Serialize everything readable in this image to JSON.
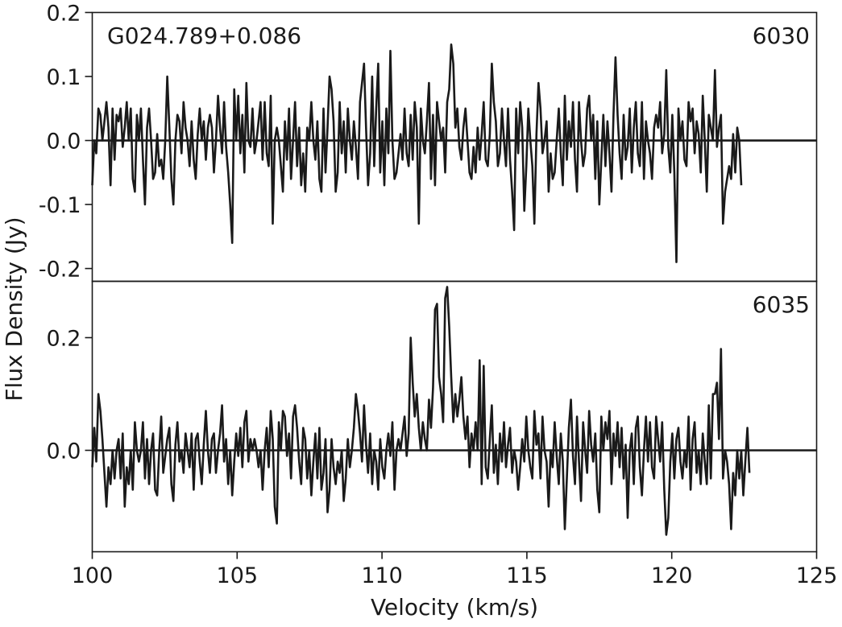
{
  "chart_data": {
    "type": "line",
    "xlabel": "Velocity (km/s)",
    "ylabel": "Flux Density (Jy)",
    "xlim": [
      100,
      125
    ],
    "x_ticks": [
      100,
      105,
      110,
      115,
      120,
      125
    ],
    "x_tick_labels": [
      "100",
      "105",
      "110",
      "115",
      "120",
      "125"
    ],
    "panels": [
      {
        "source_label": "G024.789+0.086",
        "label": "6030",
        "ylim": [
          -0.22,
          0.2
        ],
        "y_ticks": [
          -0.2,
          -0.1,
          0.0,
          0.1,
          0.2
        ],
        "y_tick_labels": [
          "-0.2",
          "-0.1",
          "0.0",
          "0.1",
          "0.2"
        ],
        "x_start": 100.0,
        "x_step": 0.07,
        "values": [
          -0.07,
          0.0,
          -0.02,
          0.05,
          0.04,
          0.0,
          0.03,
          0.06,
          0.02,
          -0.07,
          0.05,
          -0.03,
          0.04,
          0.03,
          0.05,
          -0.01,
          0.02,
          0.06,
          0.0,
          0.05,
          -0.06,
          -0.08,
          0.04,
          0.0,
          0.05,
          -0.03,
          -0.1,
          0.02,
          0.05,
          0.0,
          -0.06,
          -0.05,
          0.01,
          -0.04,
          -0.03,
          -0.06,
          0.0,
          0.1,
          0.02,
          -0.06,
          -0.1,
          0.0,
          0.04,
          0.03,
          -0.02,
          0.06,
          0.02,
          0.0,
          -0.04,
          0.03,
          -0.03,
          -0.06,
          0.01,
          0.05,
          0.0,
          0.03,
          -0.03,
          0.02,
          0.04,
          0.02,
          -0.05,
          0.0,
          0.07,
          0.02,
          -0.02,
          0.06,
          -0.01,
          -0.05,
          -0.1,
          -0.16,
          0.08,
          0.0,
          0.07,
          -0.02,
          0.04,
          -0.05,
          0.09,
          0.0,
          -0.01,
          0.05,
          -0.02,
          0.0,
          0.03,
          0.06,
          -0.03,
          0.06,
          -0.02,
          -0.04,
          0.07,
          -0.13,
          0.0,
          0.02,
          0.0,
          -0.04,
          -0.08,
          0.03,
          -0.03,
          0.05,
          -0.06,
          0.0,
          0.06,
          -0.04,
          0.02,
          -0.07,
          -0.02,
          -0.08,
          0.02,
          0.0,
          0.06,
          0.0,
          -0.03,
          0.03,
          -0.06,
          -0.08,
          0.05,
          -0.05,
          0.02,
          0.1,
          0.08,
          0.03,
          -0.08,
          -0.05,
          0.06,
          -0.02,
          0.03,
          -0.05,
          0.05,
          0.0,
          -0.03,
          0.03,
          -0.01,
          -0.06,
          0.06,
          0.09,
          0.12,
          0.02,
          -0.07,
          -0.02,
          0.1,
          -0.04,
          0.05,
          0.12,
          -0.05,
          0.03,
          -0.07,
          0.05,
          -0.02,
          0.14,
          0.0,
          -0.06,
          -0.05,
          -0.02,
          0.01,
          -0.03,
          0.05,
          -0.02,
          -0.04,
          0.04,
          -0.03,
          0.06,
          0.02,
          -0.13,
          0.05,
          0.0,
          -0.02,
          0.03,
          0.09,
          -0.06,
          0.04,
          -0.07,
          0.06,
          0.03,
          0.0,
          0.02,
          -0.05,
          0.06,
          0.08,
          0.15,
          0.12,
          0.02,
          0.05,
          -0.01,
          -0.03,
          0.02,
          0.05,
          0.0,
          -0.05,
          -0.06,
          -0.01,
          -0.05,
          0.02,
          -0.03,
          0.01,
          0.06,
          -0.03,
          -0.04,
          0.01,
          0.12,
          0.06,
          0.03,
          -0.04,
          -0.02,
          0.05,
          0.0,
          -0.04,
          0.05,
          -0.03,
          -0.08,
          -0.14,
          0.05,
          -0.02,
          0.06,
          0.02,
          -0.11,
          -0.04,
          0.05,
          0.0,
          -0.04,
          -0.13,
          0.01,
          0.09,
          0.05,
          -0.02,
          0.0,
          0.03,
          -0.08,
          -0.02,
          -0.06,
          -0.05,
          0.0,
          0.05,
          -0.02,
          -0.07,
          0.07,
          -0.03,
          0.03,
          -0.01,
          0.06,
          -0.03,
          -0.08,
          0.06,
          0.0,
          -0.04,
          -0.02,
          0.05,
          0.07,
          0.0,
          0.04,
          -0.06,
          0.03,
          -0.1,
          -0.03,
          0.04,
          -0.04,
          0.03,
          -0.02,
          -0.08,
          0.04,
          0.13,
          0.04,
          -0.02,
          -0.06,
          0.04,
          -0.03,
          -0.01,
          0.05,
          -0.05,
          0.02,
          0.06,
          -0.02,
          -0.04,
          0.06,
          -0.06,
          0.03,
          0.0,
          -0.02,
          -0.06,
          0.02,
          0.04,
          0.02,
          0.06,
          -0.02,
          0.01,
          0.11,
          -0.01,
          -0.05,
          0.04,
          -0.05,
          -0.19,
          0.05,
          0.0,
          0.03,
          -0.03,
          -0.04,
          0.06,
          0.03,
          0.05,
          -0.02,
          0.03,
          0.01,
          -0.05,
          0.07,
          0.0,
          -0.08,
          0.04,
          0.02,
          0.0,
          0.11,
          -0.01,
          0.02,
          0.04,
          -0.13,
          -0.08,
          -0.06,
          -0.04,
          -0.06,
          0.01,
          -0.05,
          0.02,
          0.0,
          -0.07
        ],
        "series_name": ""
      },
      {
        "label": "6035",
        "ylim": [
          -0.18,
          0.3
        ],
        "y_ticks": [
          0.0,
          0.2
        ],
        "y_tick_labels": [
          "0.0",
          "0.2"
        ],
        "x_start": 100.0,
        "x_step": 0.07,
        "values": [
          -0.03,
          0.04,
          -0.02,
          0.1,
          0.07,
          0.02,
          -0.04,
          -0.1,
          -0.03,
          -0.06,
          0.0,
          -0.05,
          0.0,
          0.02,
          -0.05,
          0.03,
          -0.1,
          -0.03,
          -0.06,
          0.0,
          -0.07,
          0.05,
          0.0,
          -0.02,
          0.0,
          0.05,
          -0.05,
          0.02,
          -0.06,
          0.0,
          0.03,
          -0.07,
          -0.08,
          0.0,
          0.06,
          -0.04,
          -0.01,
          0.02,
          0.04,
          -0.06,
          -0.09,
          0.01,
          0.05,
          -0.02,
          0.0,
          -0.04,
          0.03,
          0.0,
          -0.03,
          0.03,
          -0.07,
          0.02,
          0.03,
          -0.02,
          -0.06,
          0.01,
          0.07,
          0.0,
          -0.04,
          0.02,
          0.03,
          -0.04,
          0.0,
          0.03,
          0.08,
          -0.02,
          0.02,
          -0.06,
          0.0,
          -0.08,
          -0.02,
          0.03,
          -0.01,
          0.04,
          -0.03,
          0.05,
          0.07,
          -0.02,
          0.02,
          0.0,
          0.02,
          0.0,
          -0.03,
          0.0,
          -0.07,
          0.0,
          0.04,
          -0.03,
          0.07,
          0.02,
          -0.1,
          -0.13,
          0.05,
          0.0,
          0.07,
          0.06,
          -0.01,
          0.03,
          -0.05,
          0.06,
          0.08,
          0.04,
          -0.02,
          -0.06,
          0.04,
          0.02,
          -0.05,
          0.0,
          -0.08,
          -0.02,
          0.03,
          -0.05,
          0.04,
          -0.07,
          -0.04,
          0.02,
          -0.11,
          -0.07,
          0.02,
          -0.03,
          -0.06,
          -0.02,
          -0.04,
          0.0,
          -0.09,
          -0.05,
          0.02,
          -0.03,
          0.0,
          0.04,
          0.1,
          0.07,
          0.03,
          -0.02,
          0.08,
          0.01,
          -0.04,
          0.03,
          -0.06,
          0.0,
          -0.02,
          -0.07,
          0.02,
          -0.03,
          -0.05,
          0.0,
          0.03,
          -0.01,
          0.05,
          -0.07,
          0.0,
          0.02,
          0.0,
          0.03,
          0.06,
          -0.01,
          0.03,
          0.2,
          0.12,
          0.06,
          0.1,
          0.04,
          0.0,
          0.05,
          0.02,
          0.0,
          0.09,
          0.04,
          0.11,
          0.25,
          0.26,
          0.13,
          0.1,
          0.05,
          0.27,
          0.29,
          0.22,
          0.13,
          0.05,
          0.1,
          0.06,
          0.09,
          0.13,
          0.06,
          0.02,
          0.06,
          -0.03,
          0.03,
          0.0,
          0.05,
          0.0,
          0.16,
          -0.06,
          0.15,
          -0.03,
          -0.05,
          0.02,
          0.08,
          -0.04,
          0.01,
          -0.06,
          0.03,
          -0.02,
          0.05,
          -0.03,
          0.01,
          0.04,
          -0.04,
          0.0,
          -0.02,
          -0.07,
          -0.03,
          0.02,
          -0.02,
          0.06,
          0.0,
          -0.03,
          -0.05,
          0.07,
          0.01,
          0.03,
          -0.05,
          0.06,
          0.0,
          -0.02,
          -0.1,
          0.0,
          -0.03,
          0.05,
          -0.01,
          -0.06,
          0.03,
          -0.02,
          -0.14,
          -0.05,
          0.04,
          0.09,
          -0.01,
          -0.06,
          0.06,
          -0.02,
          -0.09,
          0.05,
          0.0,
          -0.04,
          0.07,
          0.01,
          -0.02,
          0.03,
          -0.07,
          -0.11,
          0.06,
          0.0,
          0.05,
          0.02,
          0.07,
          -0.06,
          0.03,
          -0.01,
          0.05,
          -0.03,
          0.04,
          -0.05,
          0.01,
          -0.12,
          0.0,
          0.03,
          -0.06,
          0.04,
          0.06,
          -0.03,
          -0.08,
          0.0,
          0.06,
          -0.02,
          0.05,
          -0.03,
          -0.05,
          0.06,
          0.02,
          -0.02,
          0.05,
          -0.07,
          -0.15,
          -0.12,
          -0.02,
          0.03,
          -0.05,
          0.02,
          0.04,
          -0.02,
          -0.05,
          0.0,
          -0.03,
          0.06,
          -0.07,
          0.02,
          0.05,
          -0.04,
          0.0,
          -0.06,
          0.03,
          -0.02,
          -0.06,
          0.08,
          -0.05,
          0.1,
          0.1,
          0.12,
          0.02,
          0.18,
          -0.05,
          0.0,
          -0.02,
          -0.06,
          -0.14,
          -0.04,
          -0.08,
          0.0,
          -0.05,
          0.0,
          -0.08,
          -0.02,
          0.04,
          -0.04
        ]
      }
    ]
  }
}
